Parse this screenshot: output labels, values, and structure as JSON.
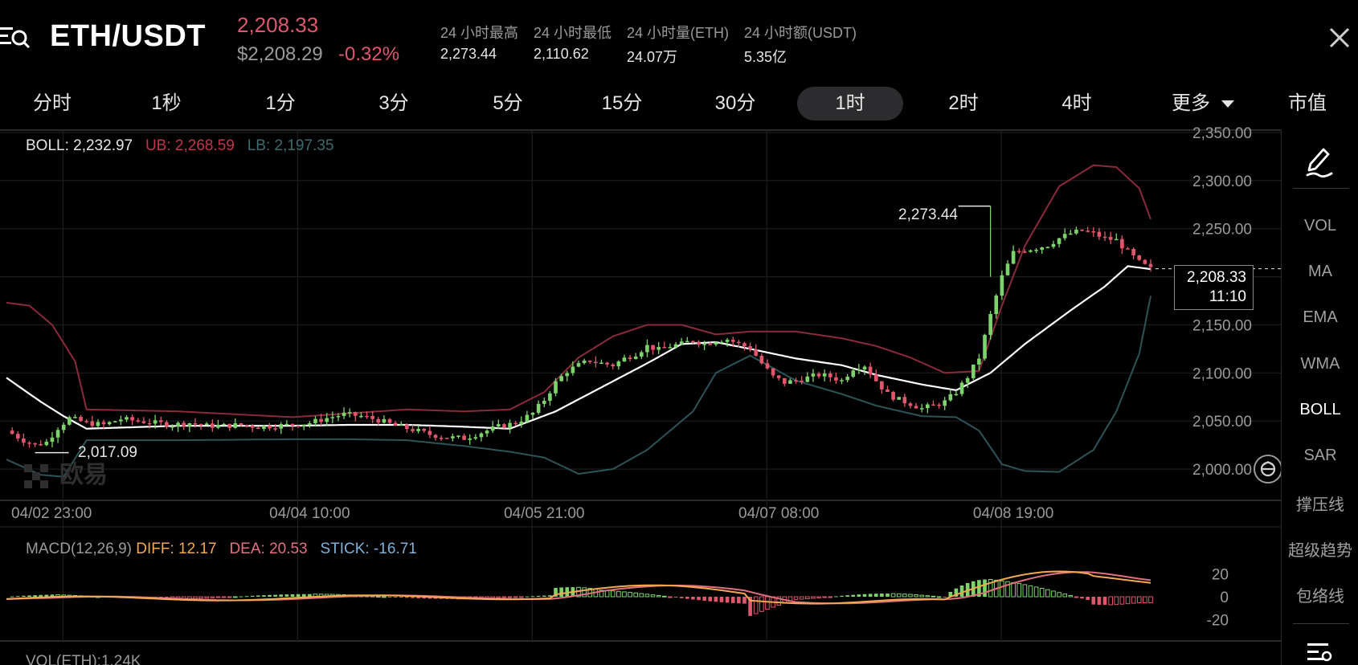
{
  "header": {
    "pair": "ETH/USDT",
    "last_price": "2,208.33",
    "usd_price": "$2,208.29",
    "change_pct": "-0.32%",
    "stats": [
      {
        "label": "24 小时最高",
        "value": "2,273.44"
      },
      {
        "label": "24 小时最低",
        "value": "2,110.62"
      },
      {
        "label": "24 小时量(ETH)",
        "value": "24.07万"
      },
      {
        "label": "24 小时额(USDT)",
        "value": "5.35亿"
      }
    ],
    "colors": {
      "down": "#e0576d",
      "up": "#7dd36b"
    }
  },
  "timeframes": {
    "items": [
      "分时",
      "1秒",
      "1分",
      "3分",
      "5分",
      "15分",
      "30分",
      "1时",
      "2时",
      "4时",
      "更多"
    ],
    "active": "1时",
    "market_cap": "市值"
  },
  "boll": {
    "label": "BOLL: 2,232.97",
    "ub": "UB: 2,268.59",
    "lb": "LB: 2,197.35"
  },
  "price_tag": {
    "price": "2,208.33",
    "countdown": "11:10"
  },
  "markers": {
    "high": "2,273.44",
    "low": "2,017.09"
  },
  "watermark": "欧易",
  "macd": {
    "label": "MACD(12,26,9)",
    "diff": "DIFF: 12.17",
    "dea": "DEA: 20.53",
    "stick": "STICK: -16.71"
  },
  "vol_legend": "VOL(ETH):1.24K",
  "sidebar": {
    "items": [
      "VOL",
      "MA",
      "EMA",
      "WMA",
      "BOLL",
      "SAR",
      "撑压线",
      "超级趋势",
      "包络线"
    ],
    "active": "BOLL"
  },
  "chart_data": [
    {
      "type": "candlestick",
      "title": "ETH/USDT 1时",
      "x_ticks": [
        "04/02 23:00",
        "04/04 10:00",
        "04/05 21:00",
        "04/07 08:00",
        "04/08 19:00"
      ],
      "y_ticks": [
        "2,000.00",
        "2,050.00",
        "2,100.00",
        "2,150.00",
        "2,200.00",
        "2,250.00",
        "2,300.00",
        "2,350.00"
      ],
      "ylim": [
        1985,
        2350
      ],
      "high": 2273.44,
      "low": 2017.09,
      "last": 2208.33,
      "close_path": [
        [
          0,
          2040
        ],
        [
          3,
          2030
        ],
        [
          5,
          2025
        ],
        [
          7,
          2028
        ],
        [
          9,
          2043
        ],
        [
          11,
          2053
        ],
        [
          14,
          2048
        ],
        [
          17,
          2046
        ],
        [
          20,
          2052
        ],
        [
          23,
          2050
        ],
        [
          26,
          2048
        ],
        [
          29,
          2046
        ],
        [
          32,
          2048
        ],
        [
          35,
          2045
        ],
        [
          38,
          2045
        ],
        [
          41,
          2046
        ],
        [
          44,
          2044
        ],
        [
          47,
          2045
        ],
        [
          50,
          2046
        ],
        [
          53,
          2048
        ],
        [
          56,
          2053
        ],
        [
          59,
          2057
        ],
        [
          62,
          2055
        ],
        [
          65,
          2051
        ],
        [
          68,
          2045
        ],
        [
          71,
          2041
        ],
        [
          74,
          2036
        ],
        [
          77,
          2033
        ],
        [
          80,
          2032
        ],
        [
          83,
          2038
        ],
        [
          86,
          2044
        ],
        [
          89,
          2048
        ],
        [
          92,
          2058
        ],
        [
          94,
          2072
        ],
        [
          96,
          2090
        ],
        [
          98,
          2102
        ],
        [
          100,
          2108
        ],
        [
          102,
          2113
        ],
        [
          104,
          2110
        ],
        [
          106,
          2108
        ],
        [
          108,
          2115
        ],
        [
          110,
          2120
        ],
        [
          112,
          2128
        ],
        [
          114,
          2124
        ],
        [
          116,
          2128
        ],
        [
          118,
          2130
        ],
        [
          120,
          2134
        ],
        [
          122,
          2130
        ],
        [
          124,
          2134
        ],
        [
          126,
          2135
        ],
        [
          128,
          2130
        ],
        [
          130,
          2126
        ],
        [
          132,
          2110
        ],
        [
          134,
          2096
        ],
        [
          136,
          2090
        ],
        [
          138,
          2092
        ],
        [
          140,
          2095
        ],
        [
          142,
          2098
        ],
        [
          144,
          2096
        ],
        [
          146,
          2092
        ],
        [
          148,
          2105
        ],
        [
          150,
          2108
        ],
        [
          152,
          2092
        ],
        [
          154,
          2078
        ],
        [
          156,
          2072
        ],
        [
          158,
          2068
        ],
        [
          160,
          2063
        ],
        [
          162,
          2066
        ],
        [
          164,
          2070
        ],
        [
          166,
          2080
        ],
        [
          168,
          2096
        ],
        [
          170,
          2116
        ],
        [
          172,
          2160
        ],
        [
          174,
          2200
        ],
        [
          176,
          2225
        ],
        [
          178,
          2228
        ],
        [
          180,
          2230
        ],
        [
          182,
          2233
        ],
        [
          184,
          2240
        ],
        [
          186,
          2245
        ],
        [
          188,
          2248
        ],
        [
          190,
          2245
        ],
        [
          192,
          2240
        ],
        [
          194,
          2238
        ],
        [
          196,
          2226
        ],
        [
          198,
          2215
        ],
        [
          200,
          2208
        ]
      ],
      "boll_mid": [
        [
          0,
          2095
        ],
        [
          6,
          2070
        ],
        [
          10,
          2055
        ],
        [
          14,
          2042
        ],
        [
          30,
          2045
        ],
        [
          50,
          2045
        ],
        [
          60,
          2046
        ],
        [
          70,
          2046
        ],
        [
          80,
          2044
        ],
        [
          88,
          2042
        ],
        [
          96,
          2060
        ],
        [
          104,
          2085
        ],
        [
          112,
          2110
        ],
        [
          118,
          2130
        ],
        [
          124,
          2132
        ],
        [
          130,
          2125
        ],
        [
          138,
          2115
        ],
        [
          146,
          2108
        ],
        [
          152,
          2098
        ],
        [
          160,
          2088
        ],
        [
          166,
          2082
        ],
        [
          172,
          2100
        ],
        [
          178,
          2130
        ],
        [
          186,
          2165
        ],
        [
          192,
          2190
        ],
        [
          196,
          2211
        ],
        [
          200,
          2208
        ]
      ],
      "boll_ub": [
        [
          0,
          2173
        ],
        [
          4,
          2170
        ],
        [
          8,
          2150
        ],
        [
          12,
          2112
        ],
        [
          14,
          2062
        ],
        [
          30,
          2060
        ],
        [
          50,
          2054
        ],
        [
          60,
          2058
        ],
        [
          70,
          2062
        ],
        [
          80,
          2060
        ],
        [
          88,
          2062
        ],
        [
          94,
          2080
        ],
        [
          100,
          2116
        ],
        [
          106,
          2138
        ],
        [
          112,
          2150
        ],
        [
          118,
          2150
        ],
        [
          124,
          2140
        ],
        [
          130,
          2143
        ],
        [
          138,
          2143
        ],
        [
          146,
          2136
        ],
        [
          152,
          2128
        ],
        [
          158,
          2116
        ],
        [
          164,
          2100
        ],
        [
          170,
          2102
        ],
        [
          174,
          2170
        ],
        [
          178,
          2232
        ],
        [
          184,
          2294
        ],
        [
          190,
          2316
        ],
        [
          194,
          2314
        ],
        [
          198,
          2292
        ],
        [
          200,
          2260
        ]
      ],
      "boll_lb": [
        [
          0,
          2010
        ],
        [
          6,
          1994
        ],
        [
          10,
          1992
        ],
        [
          14,
          2030
        ],
        [
          30,
          2030
        ],
        [
          50,
          2031
        ],
        [
          60,
          2031
        ],
        [
          70,
          2030
        ],
        [
          80,
          2024
        ],
        [
          88,
          2018
        ],
        [
          94,
          2012
        ],
        [
          100,
          1995
        ],
        [
          106,
          2000
        ],
        [
          112,
          2020
        ],
        [
          120,
          2060
        ],
        [
          124,
          2100
        ],
        [
          130,
          2118
        ],
        [
          138,
          2092
        ],
        [
          146,
          2078
        ],
        [
          152,
          2066
        ],
        [
          160,
          2055
        ],
        [
          166,
          2054
        ],
        [
          170,
          2040
        ],
        [
          174,
          2005
        ],
        [
          178,
          1998
        ],
        [
          184,
          1997
        ],
        [
          190,
          2020
        ],
        [
          194,
          2060
        ],
        [
          198,
          2120
        ],
        [
          200,
          2180
        ]
      ]
    },
    {
      "type": "bar",
      "title": "MACD(12,26,9)",
      "y_ticks": [
        "20",
        "0",
        "-20"
      ],
      "ylim": [
        -30,
        30
      ],
      "diff": 12.17,
      "dea": 20.53,
      "stick": -16.71
    }
  ]
}
